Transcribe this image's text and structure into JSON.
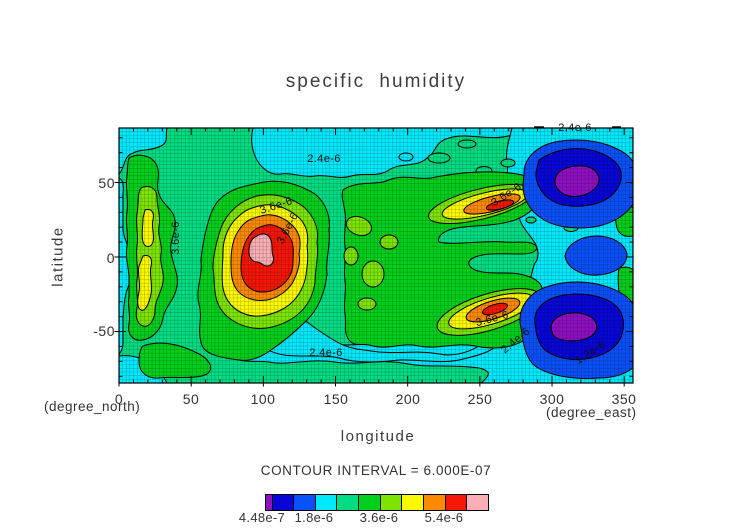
{
  "title": "specific humidity",
  "axes": {
    "x": {
      "label": "longitude",
      "unit": "(degree_east)",
      "ticks": [
        "0",
        "50",
        "100",
        "150",
        "200",
        "250",
        "300",
        "350"
      ]
    },
    "y": {
      "label": "latitude",
      "unit": "(degree_north)",
      "ticks": [
        "50",
        "0",
        "-50"
      ]
    }
  },
  "footer": {
    "contour_interval": "CONTOUR INTERVAL = 6.000E-07"
  },
  "contour_labels": {
    "l12": "1.2e-6",
    "l24": "2.4e-6",
    "l36": "3.6e-6"
  },
  "colorbar": {
    "labels": [
      "4.48e-7",
      "1.8e-6",
      "3.6e-6",
      "5.4e-6"
    ]
  },
  "colors": {
    "background": "#ffffff",
    "axis": "#000000",
    "purple": "#8F10C0",
    "dark_blue": "#0706D6",
    "blue": "#0A50F8",
    "cyan": "#00E9FB",
    "spring_green": "#00DC82",
    "green": "#00CF1D",
    "yellow_green": "#7CE400",
    "yellow": "#FBF900",
    "orange": "#FB8A00",
    "red": "#F41607",
    "pink": "#FBAEB6"
  },
  "chart_data": {
    "type": "heatmap",
    "subtype": "filled_contour_map",
    "title": "specific humidity",
    "xlabel": "longitude (degree_east)",
    "ylabel": "latitude (degree_north)",
    "xlim": [
      0,
      356
    ],
    "ylim": [
      -84.5,
      86.5
    ],
    "x_major_ticks": [
      0,
      50,
      100,
      150,
      200,
      250,
      300,
      350
    ],
    "y_major_ticks": [
      -50,
      0,
      50
    ],
    "minor_tick_step_deg": 10,
    "grid": "fine white graticule over filled contours",
    "contour_interval": 6e-07,
    "levels": [
      4.48e-07,
      6e-07,
      1.2e-06,
      1.8e-06,
      2.4e-06,
      3e-06,
      3.6e-06,
      4.2e-06,
      4.8e-06,
      5.4e-06,
      6e-06
    ],
    "level_colors": [
      "#8F10C0",
      "#0706D6",
      "#0A50F8",
      "#00E9FB",
      "#00DC82",
      "#00CF1D",
      "#7CE400",
      "#FBF900",
      "#FB8A00",
      "#F41607",
      "#FBAEB6"
    ],
    "colorbar_tick_labels": [
      "4.48e-7",
      "1.8e-6",
      "3.6e-6",
      "5.4e-6"
    ],
    "labeled_contours": [
      {
        "value": "2.4e-6",
        "lon": 143,
        "lat": 66
      },
      {
        "value": "2.4e-6",
        "lon": 317,
        "lat": 86
      },
      {
        "value": "2.4e-6",
        "lon": 144,
        "lat": -64
      },
      {
        "value": "2.4e-6",
        "lon": 275,
        "lat": -56
      },
      {
        "value": "3.6e-6",
        "lon": 109,
        "lat": 35
      },
      {
        "value": "3.6e-6",
        "lon": 117,
        "lat": 19
      },
      {
        "value": "3.6e-6",
        "lon": 39,
        "lat": 13
      },
      {
        "value": "3.6e-6",
        "lon": 268,
        "lat": 42
      },
      {
        "value": "3.6e-6",
        "lon": 259,
        "lat": -41
      },
      {
        "value": "1.2e-6",
        "lon": 328,
        "lat": -64
      }
    ],
    "features": [
      {
        "name": "primary maximum (pink, > 6.0e-6)",
        "lon": 101,
        "lat": -1
      },
      {
        "name": "secondary maximum (red)",
        "lon": 264,
        "lat": 35
      },
      {
        "name": "secondary maximum (red)",
        "lon": 258,
        "lat": -31
      },
      {
        "name": "minimum (purple, < 6.0e-7)",
        "lon": 318,
        "lat": 52
      },
      {
        "name": "minimum (purple, < 6.0e-7)",
        "lon": 315,
        "lat": -53
      }
    ]
  }
}
